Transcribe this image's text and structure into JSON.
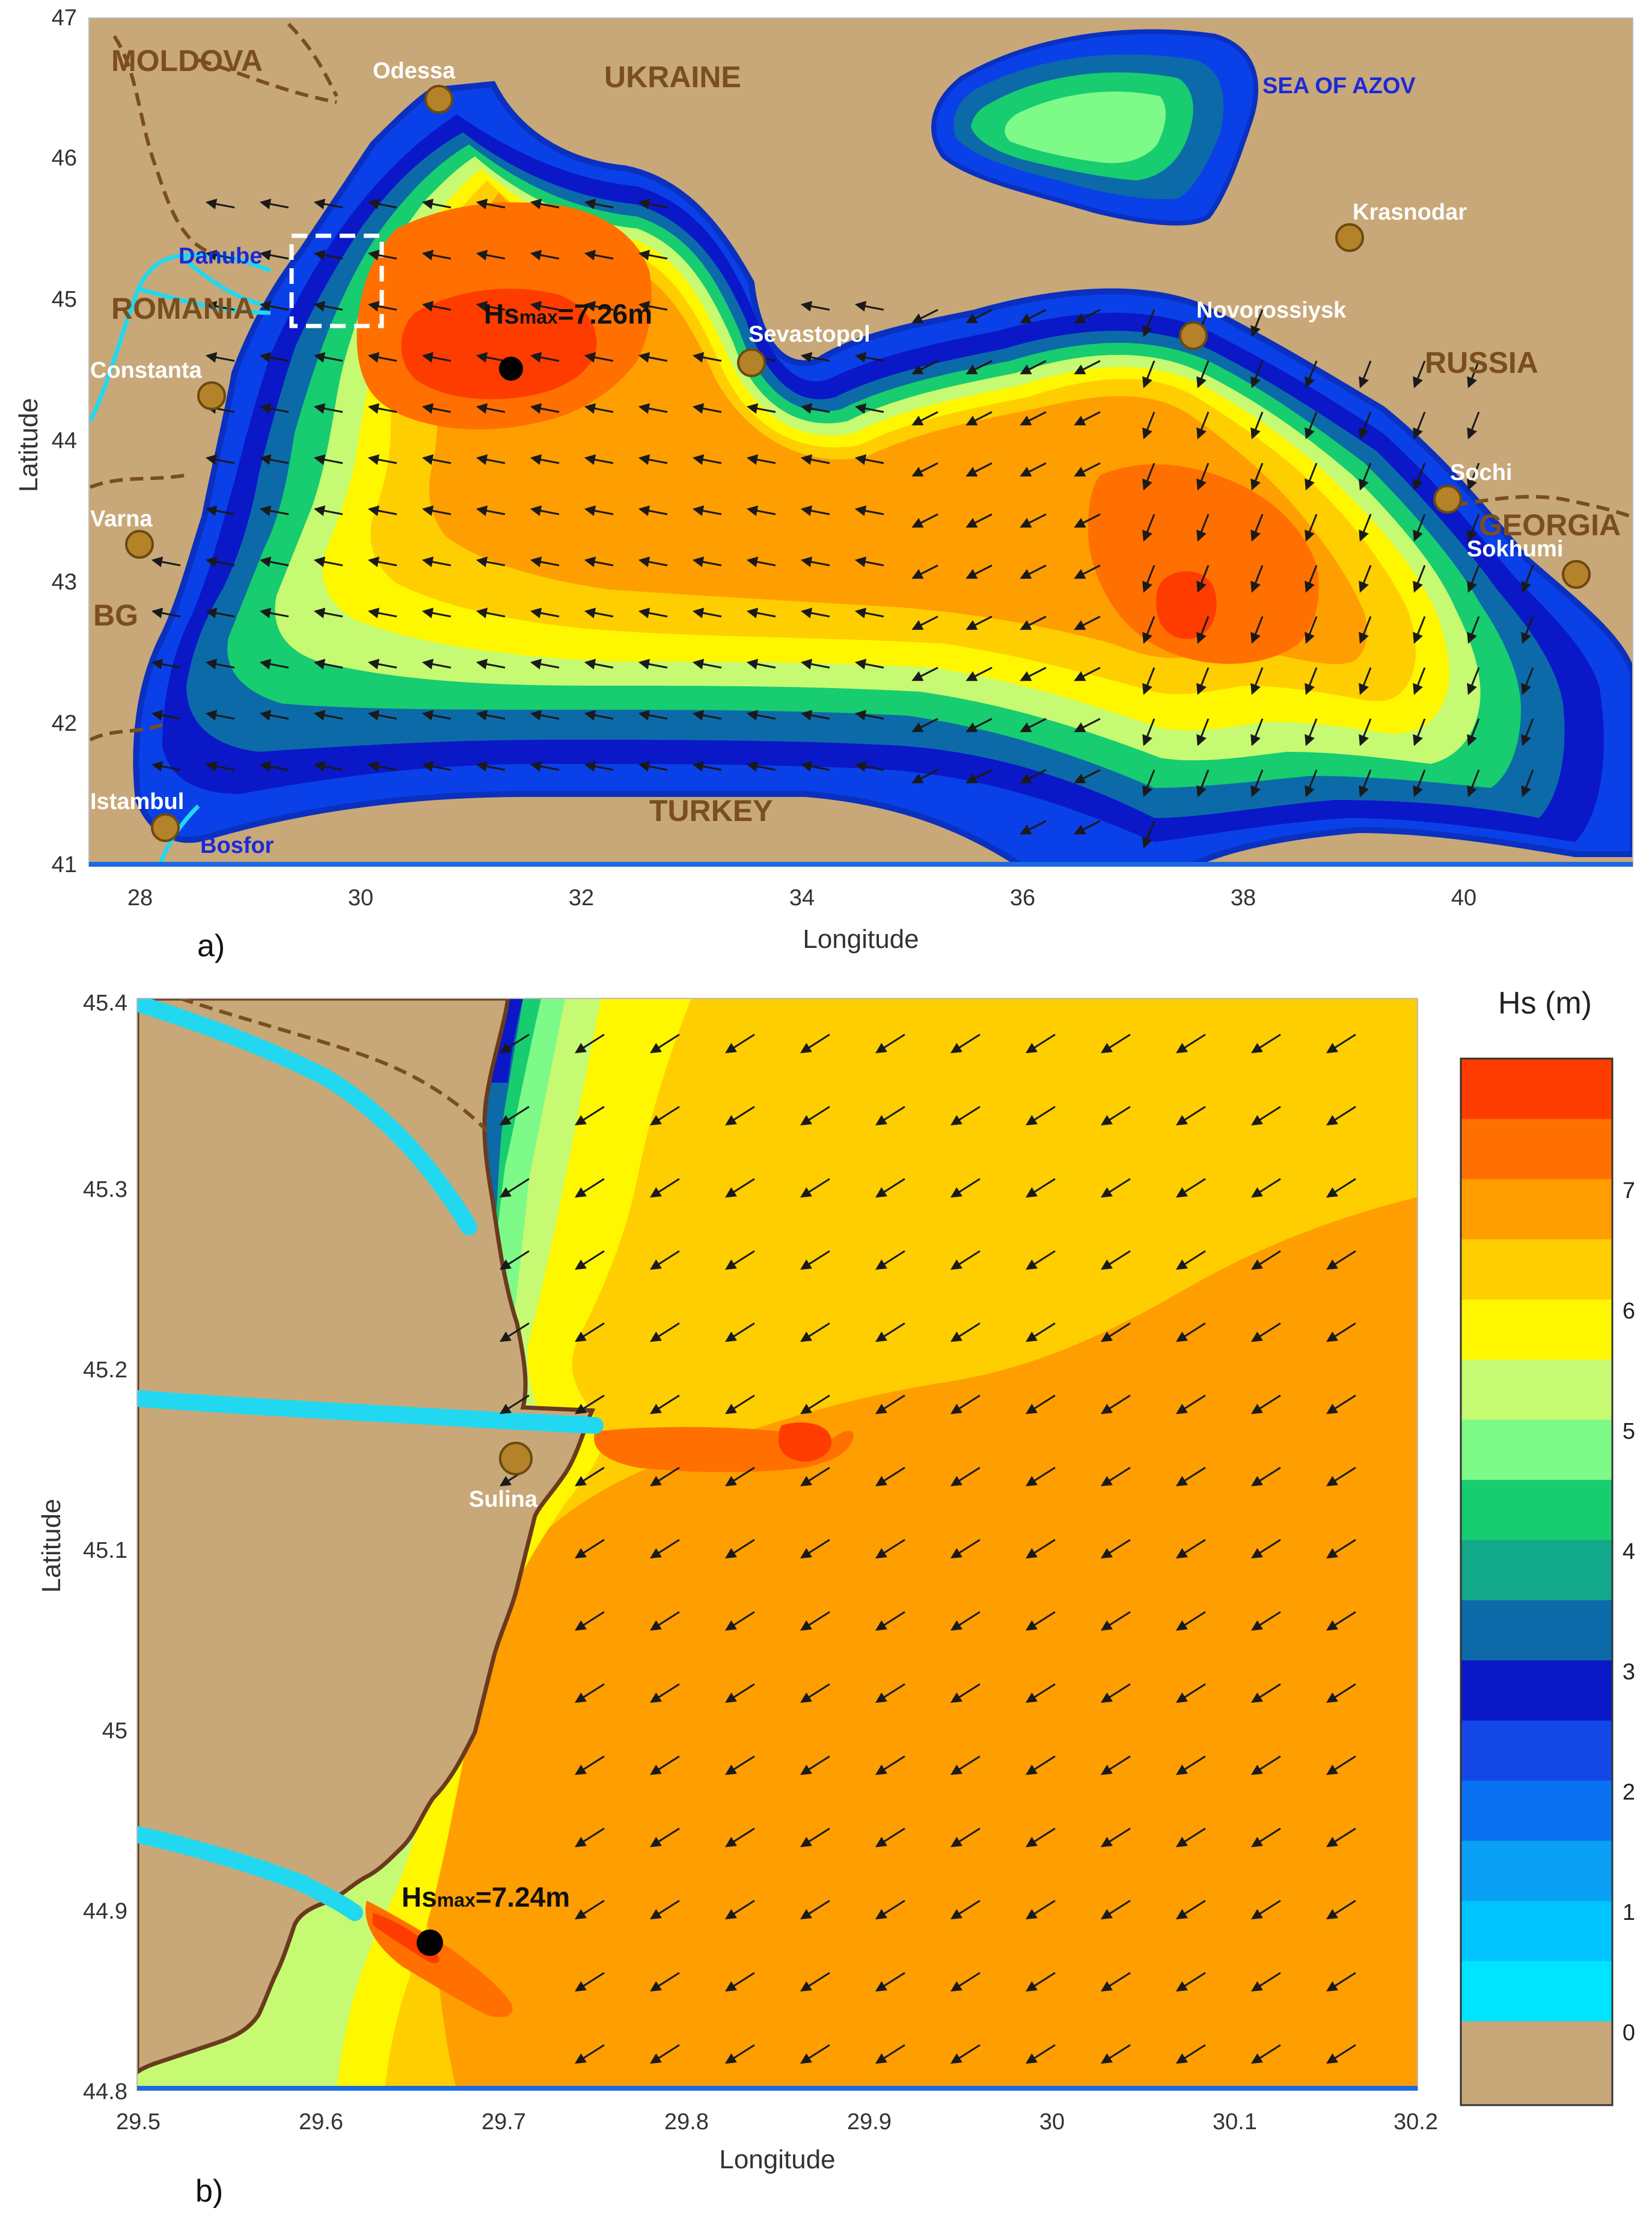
{
  "panel_a": {
    "label": "a)",
    "xlabel": "Longitude",
    "ylabel": "Latitude",
    "xticks": [
      "28",
      "30",
      "32",
      "34",
      "36",
      "38",
      "40"
    ],
    "yticks": [
      "41",
      "42",
      "43",
      "44",
      "45",
      "46",
      "47"
    ],
    "countries": [
      "MOLDOVA",
      "UKRAINE",
      "ROMANIA",
      "RUSSIA",
      "GEORGIA",
      "BG",
      "TURKEY"
    ],
    "cities": [
      "Odessa",
      "Constanta",
      "Varna",
      "Istambul",
      "Sevastopol",
      "Novorossiysk",
      "Krasnodar",
      "Sochi",
      "Sokhumi"
    ],
    "water_labels": [
      "Danube",
      "Bosfor",
      "SEA OF AZOV"
    ],
    "hsmax_prefix": "Hs",
    "hsmax_sub": "max",
    "hsmax_value": "=7.26m"
  },
  "panel_b": {
    "label": "b)",
    "xlabel": "Longitude",
    "ylabel": "Latitude",
    "xticks": [
      "29.5",
      "29.6",
      "29.7",
      "29.8",
      "29.9",
      "30",
      "30.1",
      "30.2"
    ],
    "yticks": [
      "44.8",
      "44.9",
      "45",
      "45.1",
      "45.2",
      "45.3",
      "45.4"
    ],
    "city": "Sulina",
    "hsmax_prefix": "Hs",
    "hsmax_sub": "max",
    "hsmax_value": "=7.24m"
  },
  "colorbar": {
    "title": "Hs (m)",
    "ticks": [
      "0",
      "1",
      "2",
      "3",
      "4",
      "5",
      "6",
      "7"
    ],
    "colors": [
      "#00e5ff",
      "#00c4ff",
      "#0aa0f5",
      "#0a72f0",
      "#1448e6",
      "#0a18c8",
      "#0c6aa8",
      "#12a88a",
      "#18cc70",
      "#7dfa88",
      "#c6fa72",
      "#fff700",
      "#ffce00",
      "#ff9e00",
      "#ff7000",
      "#ff3c00"
    ]
  },
  "colors": {
    "land": "#c8a878",
    "coast": "#6a3a1e",
    "river": "#22d8f0",
    "border": "#7a4e1e",
    "city_marker": "#b48228"
  }
}
